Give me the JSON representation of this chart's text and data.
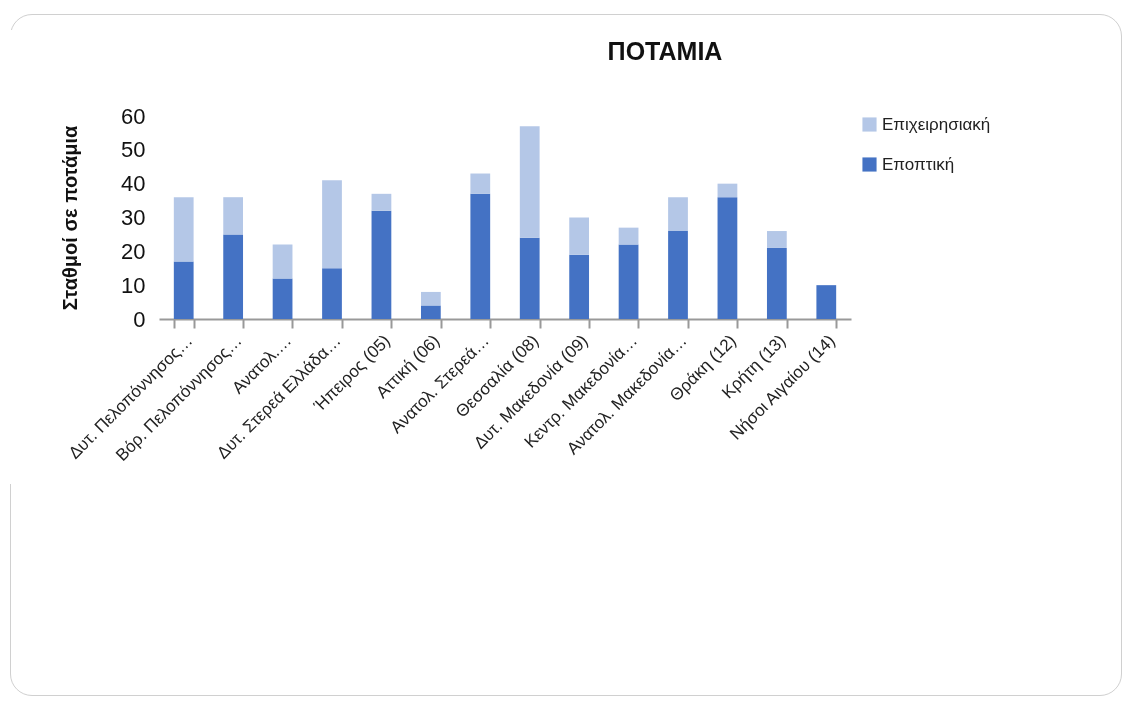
{
  "chart_data": {
    "type": "bar",
    "title": "ΠΟΤΑΜΙΑ",
    "ylabel": "Σταθμοί σε ποτάμια",
    "categories": [
      "Δυτ. Πελοπόννησος…",
      "Βόρ. Πελοπόννησος…",
      "Ανατολ.…",
      "Δυτ. Στερεά Ελλάδα…",
      "Ήπειρος (05)",
      "Αττική (06)",
      "Ανατολ. Στερεά…",
      "Θεσσαλία (08)",
      "Δυτ. Μακεδονία (09)",
      "Κεντρ. Μακεδονία…",
      "Ανατολ. Μακεδονία…",
      "Θράκη (12)",
      "Κρήτη (13)",
      "Νήσοι Αιγαίου (14)"
    ],
    "series": [
      {
        "name": "Εποπτική",
        "color": "#4472c4",
        "values": [
          17,
          25,
          12,
          15,
          32,
          4,
          37,
          24,
          19,
          22,
          26,
          36,
          21,
          10
        ]
      },
      {
        "name": "Επιχειρησιακή",
        "color": "#b4c7e7",
        "values": [
          19,
          11,
          10,
          26,
          5,
          4,
          6,
          33,
          11,
          5,
          10,
          4,
          5,
          0
        ]
      }
    ],
    "stacked": true,
    "ylim": [
      0,
      60
    ],
    "yticks": [
      0,
      10,
      20,
      30,
      40,
      50,
      60
    ],
    "grid": false,
    "legend": "right"
  }
}
